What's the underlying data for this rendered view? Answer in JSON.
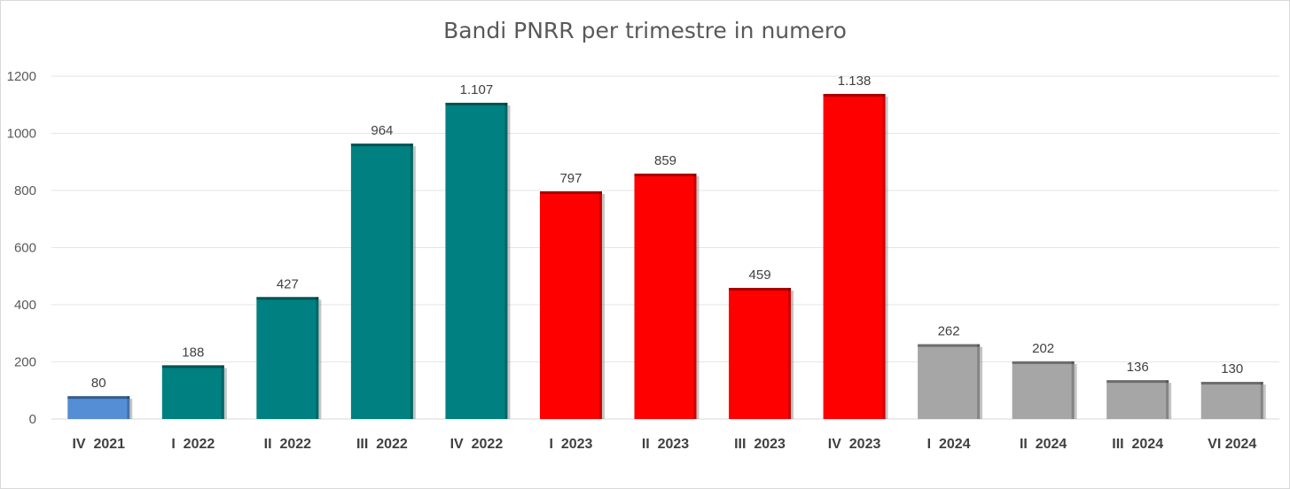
{
  "chart_data": {
    "type": "bar",
    "title": "Bandi PNRR per trimestre in numero",
    "xlabel": "",
    "ylabel": "",
    "ylim": [
      0,
      1200
    ],
    "yticks": [
      "0",
      "200",
      "400",
      "600",
      "800",
      "1000",
      "1200"
    ],
    "grid": true,
    "legend": "none",
    "categories": [
      "IV  2021",
      "I  2022",
      "II  2022",
      "III  2022",
      "IV  2022",
      "I  2023",
      "II  2023",
      "III  2023",
      "IV  2023",
      "I  2024",
      "II  2024",
      "III  2024",
      "VI 2024"
    ],
    "values": [
      80,
      188,
      427,
      964,
      1107,
      797,
      859,
      459,
      1138,
      262,
      202,
      136,
      130
    ],
    "data_labels": [
      "80",
      "188",
      "427",
      "964",
      "1.107",
      "797",
      "859",
      "459",
      "1.138",
      "262",
      "202",
      "136",
      "130"
    ],
    "colors": [
      "#558ED5",
      "#008080",
      "#008080",
      "#008080",
      "#008080",
      "#FF0000",
      "#FF0000",
      "#FF0000",
      "#FF0000",
      "#A6A6A6",
      "#A6A6A6",
      "#A6A6A6",
      "#A6A6A6"
    ],
    "color_groups": {
      "2021": "#558ED5",
      "2022": "#008080",
      "2023": "#FF0000",
      "2024": "#A6A6A6"
    }
  }
}
